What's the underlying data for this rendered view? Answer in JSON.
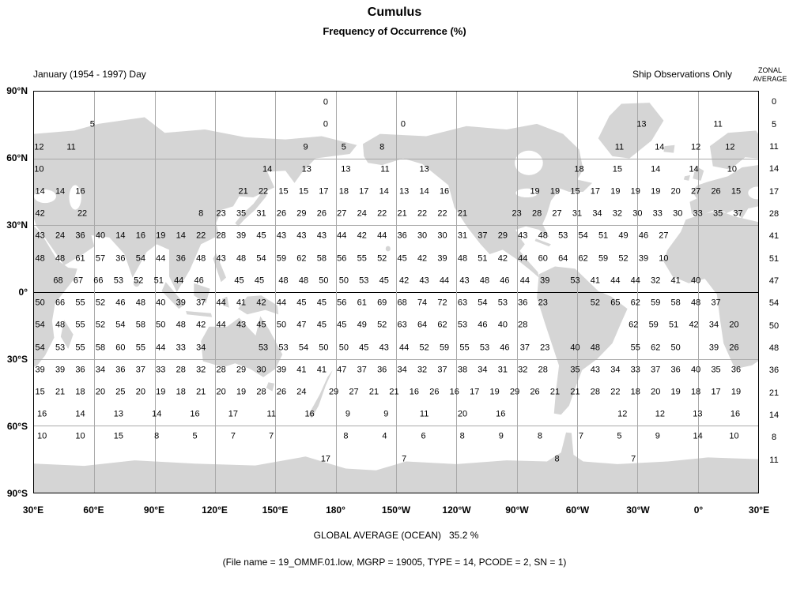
{
  "title": "Cumulus",
  "subtitle": "Frequency of Occurrence (%)",
  "header": {
    "left_caption": "January (1954 - 1997) Day",
    "right_caption": "Ship Observations Only",
    "zonal_line1": "ZONAL",
    "zonal_line2": "AVERAGE"
  },
  "footer": {
    "global_average": "GLOBAL AVERAGE (OCEAN)   35.2 %",
    "file_info": "(File name = 19_OMMF.01.low, MGRP = 19005, TYPE = 14, PCODE = 2, SN = 1)"
  },
  "chart_data": {
    "type": "heatmap",
    "title": "Cumulus",
    "subtitle": "Frequency of Occurrence (%)",
    "period": "January (1954 - 1997) Day",
    "source": "Ship Observations Only",
    "units": "percent frequency of occurrence over ocean, 10-degree boxes",
    "global_average_ocean_pct": 35.2,
    "x_axis": {
      "labels": [
        "30°E",
        "60°E",
        "90°E",
        "120°E",
        "150°E",
        "180°",
        "150°W",
        "120°W",
        "90°W",
        "60°W",
        "30°W",
        "0°",
        "30°E"
      ]
    },
    "y_axis": {
      "labels": [
        "90°N",
        "60°N",
        "30°N",
        "0°",
        "30°S",
        "60°S",
        "90°S"
      ]
    },
    "grid_note": "rows are 10-degree latitude bands from 90N to 90S; c0 is the value center in 10-degree longitude units east of 30E (0..36)",
    "rows": [
      {
        "band": "90N-80N",
        "zonal": "0",
        "runs": [
          {
            "c0": 14.5,
            "vals": [
              "0"
            ]
          }
        ]
      },
      {
        "band": "80N-70N",
        "zonal": "5",
        "runs": [
          {
            "c0": 2.9,
            "vals": [
              "5"
            ]
          },
          {
            "c0": 14.5,
            "vals": [
              "0"
            ]
          },
          {
            "c0": 18.35,
            "vals": [
              "0"
            ]
          },
          {
            "c0": 30.2,
            "vals": [
              "13"
            ]
          },
          {
            "c0": 34,
            "vals": [
              "11"
            ]
          }
        ]
      },
      {
        "band": "70N-60N",
        "zonal": "11",
        "runs": [
          {
            "c0": 0.25,
            "vals": [
              "12"
            ]
          },
          {
            "c0": 1.85,
            "vals": [
              "11"
            ]
          },
          {
            "c0": 13.5,
            "vals": [
              "9"
            ]
          },
          {
            "c0": 15.4,
            "vals": [
              "5"
            ]
          },
          {
            "c0": 17.3,
            "vals": [
              "8"
            ]
          },
          {
            "c0": 29.1,
            "step": 2,
            "vals": [
              "11",
              "14"
            ]
          },
          {
            "c0": 32.9,
            "vals": [
              "12"
            ]
          },
          {
            "c0": 34.6,
            "vals": [
              "12"
            ]
          }
        ]
      },
      {
        "band": "60N-50N",
        "zonal": "14",
        "runs": [
          {
            "c0": 0.25,
            "vals": [
              "10"
            ]
          },
          {
            "c0": 11.6,
            "step": 1.95,
            "vals": [
              "14",
              "13",
              "13",
              "11",
              "13"
            ]
          },
          {
            "c0": 27.1,
            "step": 1.9,
            "vals": [
              "18",
              "15",
              "14",
              "14",
              "10"
            ]
          }
        ]
      },
      {
        "band": "50N-40N",
        "zonal": "17",
        "runs": [
          {
            "c0": 0.3,
            "vals": [
              "14",
              "14",
              "16"
            ]
          },
          {
            "c0": 10.4,
            "vals": [
              "21",
              "22",
              "15",
              "15",
              "17",
              "18",
              "17",
              "14",
              "13",
              "14",
              "16"
            ]
          },
          {
            "c0": 24.9,
            "vals": [
              "19",
              "19",
              "15",
              "17",
              "19",
              "19",
              "19",
              "20",
              "27",
              "26",
              "15"
            ]
          }
        ]
      },
      {
        "band": "40N-30N",
        "zonal": "28",
        "runs": [
          {
            "c0": 0.3,
            "vals": [
              "42"
            ]
          },
          {
            "c0": 2.4,
            "vals": [
              "22"
            ]
          },
          {
            "c0": 8.3,
            "vals": [
              "8",
              "23",
              "35",
              "31",
              "26",
              "29",
              "26",
              "27",
              "24",
              "22",
              "21",
              "22",
              "22",
              "21"
            ]
          },
          {
            "c0": 24,
            "vals": [
              "23",
              "28",
              "27",
              "31",
              "34",
              "32",
              "30",
              "33",
              "30",
              "33",
              "35",
              "37"
            ]
          }
        ]
      },
      {
        "band": "30N-20N",
        "zonal": "41",
        "runs": [
          {
            "c0": 0.3,
            "vals": [
              "43",
              "24",
              "36",
              "40",
              "14",
              "16",
              "19",
              "14",
              "22",
              "28",
              "39",
              "45",
              "43",
              "43",
              "43",
              "44",
              "42",
              "44",
              "36",
              "30",
              "30",
              "31",
              "37",
              "29",
              "43",
              "48",
              "53",
              "54",
              "51",
              "49",
              "46",
              "27"
            ]
          }
        ]
      },
      {
        "band": "20N-10N",
        "zonal": "51",
        "runs": [
          {
            "c0": 0.3,
            "vals": [
              "48",
              "48",
              "61",
              "57",
              "36",
              "54",
              "44",
              "36",
              "48",
              "43",
              "48",
              "54",
              "59",
              "62",
              "58",
              "56",
              "55",
              "52",
              "45",
              "42",
              "39",
              "48",
              "51",
              "42",
              "44",
              "60",
              "64",
              "62",
              "59",
              "52",
              "39",
              "10"
            ]
          }
        ]
      },
      {
        "band": "10N-0",
        "zonal": "47",
        "runs": [
          {
            "c0": 1.2,
            "vals": [
              "68",
              "67",
              "66",
              "53",
              "52",
              "51",
              "44",
              "46"
            ]
          },
          {
            "c0": 10.2,
            "vals": [
              "45",
              "45"
            ]
          },
          {
            "c0": 12.4,
            "vals": [
              "48",
              "48",
              "50",
              "50",
              "53",
              "45",
              "42",
              "43",
              "44",
              "43",
              "48",
              "46",
              "44",
              "39"
            ]
          },
          {
            "c0": 26.9,
            "vals": [
              "53",
              "41",
              "44",
              "44",
              "32",
              "41",
              "40"
            ]
          }
        ]
      },
      {
        "band": "0-10S",
        "zonal": "54",
        "runs": [
          {
            "c0": 0.3,
            "vals": [
              "50",
              "66",
              "55",
              "52",
              "46",
              "48",
              "40",
              "39",
              "37",
              "44",
              "41",
              "42",
              "44",
              "45",
              "45",
              "56",
              "61",
              "69",
              "68",
              "74",
              "72",
              "63",
              "54",
              "53",
              "36",
              "23"
            ]
          },
          {
            "c0": 27.9,
            "vals": [
              "52",
              "65",
              "62",
              "59",
              "58",
              "48",
              "37"
            ]
          }
        ]
      },
      {
        "band": "10S-20S",
        "zonal": "50",
        "runs": [
          {
            "c0": 0.3,
            "vals": [
              "54",
              "48",
              "55",
              "52",
              "54",
              "58",
              "50",
              "48",
              "42",
              "44",
              "43",
              "45",
              "50",
              "47",
              "45",
              "45",
              "49",
              "52",
              "63",
              "64",
              "62",
              "53",
              "46",
              "40",
              "28"
            ]
          },
          {
            "c0": 29.8,
            "vals": [
              "62",
              "59",
              "51",
              "42",
              "34",
              "20"
            ]
          }
        ]
      },
      {
        "band": "20S-30S",
        "zonal": "48",
        "runs": [
          {
            "c0": 0.3,
            "vals": [
              "54",
              "53",
              "55",
              "58",
              "60",
              "55",
              "44",
              "33",
              "34"
            ]
          },
          {
            "c0": 11.4,
            "vals": [
              "53",
              "53",
              "54",
              "50",
              "50",
              "45",
              "43",
              "44",
              "52",
              "59",
              "55",
              "53",
              "46",
              "37",
              "23"
            ]
          },
          {
            "c0": 26.9,
            "vals": [
              "40",
              "48"
            ]
          },
          {
            "c0": 29.9,
            "vals": [
              "55",
              "62",
              "50"
            ]
          },
          {
            "c0": 33.8,
            "vals": [
              "39",
              "26"
            ]
          }
        ]
      },
      {
        "band": "30S-40S",
        "zonal": "36",
        "runs": [
          {
            "c0": 0.3,
            "vals": [
              "39",
              "39",
              "36",
              "34",
              "36",
              "37",
              "33",
              "28",
              "32",
              "28",
              "29",
              "30",
              "39",
              "41",
              "41",
              "47",
              "37",
              "36",
              "34",
              "32",
              "37",
              "38",
              "34",
              "31",
              "32",
              "28"
            ]
          },
          {
            "c0": 26.9,
            "vals": [
              "35",
              "43",
              "34",
              "33",
              "37",
              "36",
              "40",
              "35",
              "36"
            ]
          }
        ]
      },
      {
        "band": "40S-50S",
        "zonal": "21",
        "runs": [
          {
            "c0": 0.3,
            "vals": [
              "15",
              "21",
              "18",
              "20",
              "25",
              "20",
              "19",
              "18",
              "21",
              "20",
              "19",
              "28",
              "26",
              "24"
            ]
          },
          {
            "c0": 14.9,
            "vals": [
              "29",
              "27",
              "21",
              "21",
              "16",
              "26",
              "16",
              "17",
              "19",
              "29",
              "26",
              "21",
              "21",
              "28",
              "22",
              "18",
              "20",
              "19",
              "18",
              "17",
              "19"
            ]
          }
        ]
      },
      {
        "band": "50S-60S",
        "zonal": "14",
        "runs": [
          {
            "c0": 0.4,
            "step": 1.9,
            "vals": [
              "16",
              "14",
              "13",
              "14",
              "16",
              "17",
              "11",
              "16",
              "9",
              "9",
              "11",
              "20",
              "16"
            ]
          },
          {
            "c0": 29.25,
            "step": 1.87,
            "vals": [
              "12",
              "12",
              "13",
              "16"
            ]
          }
        ]
      },
      {
        "band": "60S-70S",
        "zonal": "8",
        "runs": [
          {
            "c0": 0.4,
            "step": 1.9,
            "vals": [
              "10",
              "10",
              "15",
              "8",
              "5",
              "7",
              "7"
            ]
          },
          {
            "c0": 15.5,
            "step": 1.93,
            "vals": [
              "8",
              "4",
              "6",
              "8",
              "9",
              "8"
            ]
          },
          {
            "c0": 27.2,
            "step": 1.9,
            "vals": [
              "7",
              "5",
              "9"
            ]
          },
          {
            "c0": 33,
            "step": 1.8,
            "vals": [
              "14",
              "10"
            ]
          }
        ]
      },
      {
        "band": "70S-80S",
        "zonal": "11",
        "runs": [
          {
            "c0": 14.5,
            "vals": [
              "17"
            ]
          },
          {
            "c0": 18.4,
            "vals": [
              "7"
            ]
          },
          {
            "c0": 26,
            "vals": [
              "8"
            ]
          },
          {
            "c0": 29.8,
            "vals": [
              "7"
            ]
          }
        ]
      },
      {
        "band": "80S-90S",
        "zonal": null,
        "runs": []
      }
    ]
  }
}
